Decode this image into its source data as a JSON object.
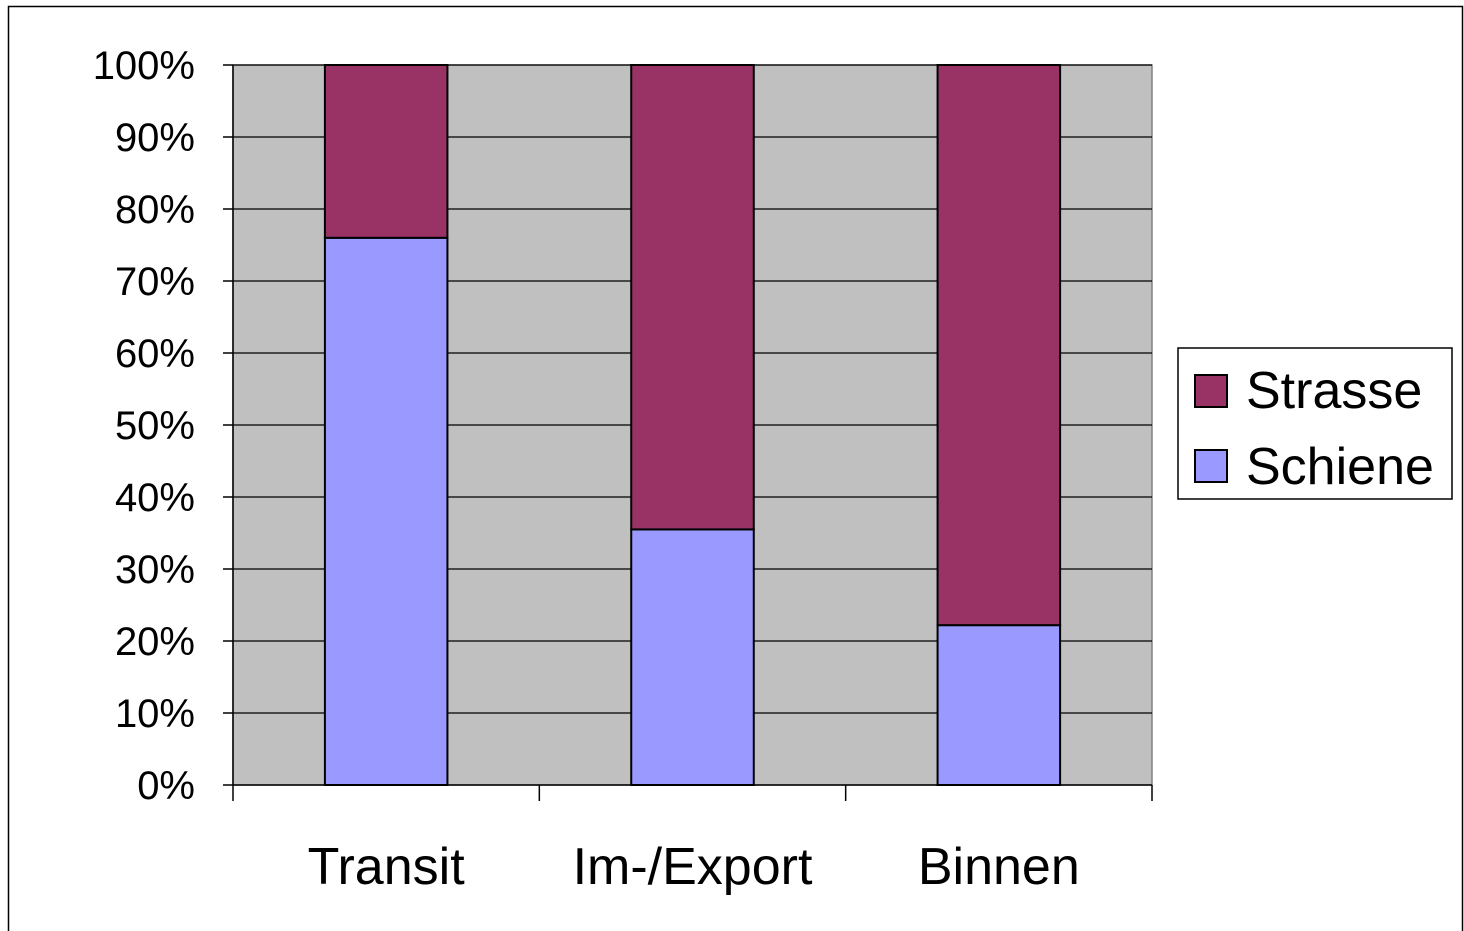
{
  "chart_data": {
    "type": "bar",
    "stacked": true,
    "categories": [
      "Transit",
      "Im-/Export",
      "Binnen"
    ],
    "series": [
      {
        "name": "Schiene",
        "values": [
          76,
          35.5,
          22.2
        ],
        "color": "#9999FF"
      },
      {
        "name": "Strasse",
        "values": [
          24,
          64.5,
          77.8
        ],
        "color": "#993366"
      }
    ],
    "ylim": [
      0,
      100
    ],
    "yticks": [
      0,
      10,
      20,
      30,
      40,
      50,
      60,
      70,
      80,
      90,
      100
    ],
    "ytick_labels": [
      "0%",
      "10%",
      "20%",
      "30%",
      "40%",
      "50%",
      "60%",
      "70%",
      "80%",
      "90%",
      "100%"
    ],
    "grid": true,
    "plot_background": "#C0C0C0",
    "legend": {
      "placement": "right",
      "entries": [
        "Strasse",
        "Schiene"
      ]
    }
  }
}
